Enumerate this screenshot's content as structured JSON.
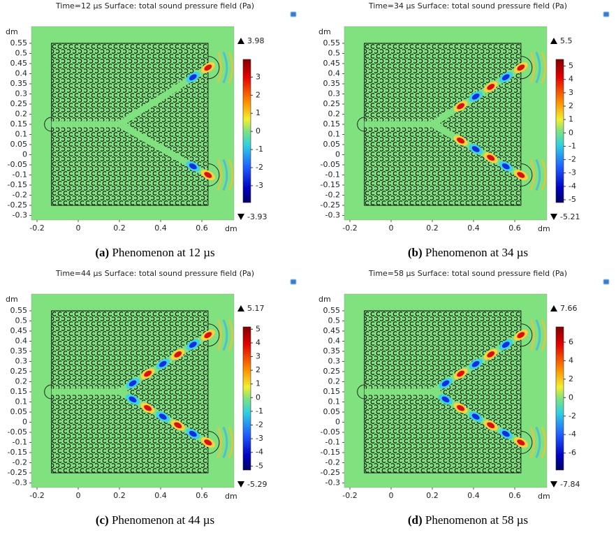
{
  "panels": [
    {
      "title": "Time=12 µs Surface: total sound pressure field (Pa)",
      "y_unit": "dm",
      "x_unit": "dm",
      "xticks": [
        -0.2,
        0,
        0.2,
        0.4,
        0.6
      ],
      "yticks": [
        0.55,
        0.5,
        0.45,
        0.4,
        0.35,
        0.3,
        0.25,
        0.2,
        0.15,
        0.1,
        0.05,
        0,
        -0.05,
        -0.1,
        -0.15,
        -0.2,
        -0.25,
        -0.3
      ],
      "colorbar": {
        "max": 3.98,
        "min": -3.93,
        "ticks": [
          3,
          2,
          1,
          0,
          -1,
          -2,
          -3
        ]
      },
      "caption": {
        "label": "(a)",
        "text": "Phenomenon at 12 µs"
      }
    },
    {
      "title": "Time=34 µs Surface: total sound pressure field (Pa)",
      "y_unit": "dm",
      "x_unit": "dm",
      "xticks": [
        -0.2,
        0,
        0.2,
        0.4,
        0.6
      ],
      "yticks": [
        0.55,
        0.5,
        0.45,
        0.4,
        0.35,
        0.3,
        0.25,
        0.2,
        0.15,
        0.1,
        0.05,
        0,
        -0.05,
        -0.1,
        -0.15,
        -0.2,
        -0.25,
        -0.3
      ],
      "colorbar": {
        "max": 5.5,
        "min": -5.21,
        "ticks": [
          5,
          4,
          3,
          2,
          1,
          0,
          -1,
          -2,
          -3,
          -4,
          -5
        ]
      },
      "caption": {
        "label": "(b)",
        "text": "Phenomenon at 34 µs"
      }
    },
    {
      "title": "Time=44 µs Surface: total sound pressure field (Pa)",
      "y_unit": "dm",
      "x_unit": "dm",
      "xticks": [
        -0.2,
        0,
        0.2,
        0.4,
        0.6
      ],
      "yticks": [
        0.55,
        0.5,
        0.45,
        0.4,
        0.35,
        0.3,
        0.25,
        0.2,
        0.15,
        0.1,
        0.05,
        0,
        -0.05,
        -0.1,
        -0.15,
        -0.2,
        -0.25,
        -0.3
      ],
      "colorbar": {
        "max": 5.17,
        "min": -5.29,
        "ticks": [
          5,
          4,
          3,
          2,
          1,
          0,
          -1,
          -2,
          -3,
          -4,
          -5
        ]
      },
      "caption": {
        "label": "(c)",
        "text": "Phenomenon at 44 µs"
      }
    },
    {
      "title": "Time=58 µs Surface: total sound pressure field (Pa)",
      "y_unit": "dm",
      "x_unit": "dm",
      "xticks": [
        -0.2,
        0,
        0.2,
        0.4,
        0.6
      ],
      "yticks": [
        0.55,
        0.5,
        0.45,
        0.4,
        0.35,
        0.3,
        0.25,
        0.2,
        0.15,
        0.1,
        0.05,
        0,
        -0.05,
        -0.1,
        -0.15,
        -0.2,
        -0.25,
        -0.3
      ],
      "colorbar": {
        "max": 7.66,
        "min": -7.84,
        "ticks": [
          6,
          4,
          2,
          0,
          -2,
          -4,
          -6
        ]
      },
      "caption": {
        "label": "(d)",
        "text": "Phenomenon at 58 µs"
      }
    }
  ]
}
